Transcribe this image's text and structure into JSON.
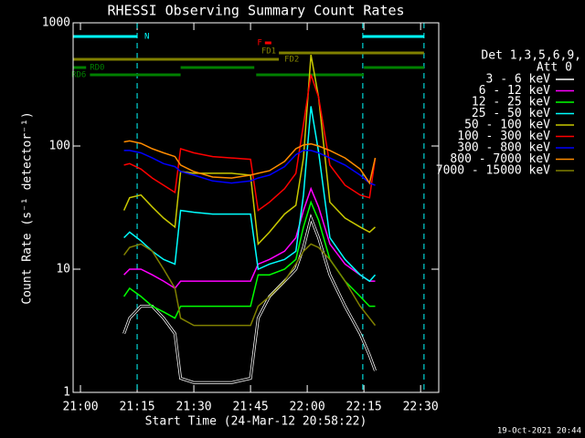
{
  "chart_data": {
    "type": "line",
    "title": "RHESSI Observing Summary Count Rates",
    "xlabel": "Start Time (24-Mar-12 20:58:22)",
    "ylabel": "Count Rate (s⁻¹ detector⁻¹)",
    "footer": "19-Oct-2021 20:44",
    "legend_title": [
      "Det 1,3,5,6,9,",
      "Att 0"
    ],
    "log_y": true,
    "xlim": [
      -1.94,
      94.8
    ],
    "ylim": [
      1,
      1000
    ],
    "xticks": [
      {
        "value": 0,
        "label": "21:00"
      },
      {
        "value": 15,
        "label": "21:15"
      },
      {
        "value": 30,
        "label": "21:30"
      },
      {
        "value": 45,
        "label": "21:45"
      },
      {
        "value": 60,
        "label": "22:00"
      },
      {
        "value": 75,
        "label": "22:15"
      },
      {
        "value": 90,
        "label": "22:30"
      }
    ],
    "yticks": [
      1,
      10,
      100,
      1000
    ],
    "x": [
      11.5,
      13,
      16,
      19,
      22,
      25,
      26.5,
      30,
      35,
      40,
      45,
      47,
      50,
      54,
      57,
      59,
      61,
      63,
      66,
      70,
      74,
      76.5,
      78
    ],
    "series": [
      {
        "name": "3 - 6 keV",
        "color": "#000000",
        "values": [
          3,
          4,
          5,
          5,
          4,
          3,
          1.3,
          1.2,
          1.2,
          1.2,
          1.3,
          4,
          6,
          8,
          10,
          15,
          26,
          18,
          9,
          5,
          3,
          2,
          1.5
        ]
      },
      {
        "name": "6 - 12 keV",
        "color": "#ff00ff",
        "values": [
          9,
          10,
          10,
          9,
          8,
          7,
          8,
          8,
          8,
          8,
          8,
          11,
          12,
          14,
          18,
          30,
          45,
          32,
          16,
          11,
          9,
          8,
          8
        ]
      },
      {
        "name": "12 - 25 keV",
        "color": "#00ff00",
        "values": [
          6,
          7,
          6,
          5,
          4.5,
          4,
          5,
          5,
          5,
          5,
          5,
          9,
          9,
          10,
          12,
          22,
          35,
          25,
          12,
          8,
          6,
          5,
          5
        ]
      },
      {
        "name": "25 - 50 keV",
        "color": "#00ffff",
        "values": [
          18,
          20,
          17,
          14,
          12,
          11,
          30,
          29,
          28,
          28,
          28,
          10,
          11,
          12,
          14,
          40,
          210,
          90,
          18,
          12,
          9,
          8,
          9
        ]
      },
      {
        "name": "50 - 100 keV",
        "color": "#c8c800",
        "values": [
          30,
          38,
          40,
          32,
          26,
          22,
          62,
          60,
          60,
          60,
          58,
          16,
          20,
          28,
          33,
          80,
          550,
          250,
          35,
          26,
          22,
          20,
          22
        ]
      },
      {
        "name": "100 - 300 keV",
        "color": "#ff0000",
        "values": [
          70,
          72,
          65,
          55,
          48,
          42,
          95,
          88,
          82,
          80,
          78,
          30,
          35,
          45,
          60,
          150,
          380,
          250,
          70,
          48,
          40,
          38,
          80
        ]
      },
      {
        "name": "300 - 800 keV",
        "color": "#0000ff",
        "values": [
          92,
          92,
          88,
          80,
          72,
          68,
          62,
          58,
          52,
          50,
          52,
          55,
          58,
          68,
          85,
          92,
          92,
          88,
          80,
          70,
          58,
          50,
          48
        ]
      },
      {
        "name": "800 - 7000 keV",
        "color": "#ff8c00",
        "values": [
          108,
          110,
          105,
          95,
          88,
          82,
          70,
          62,
          56,
          55,
          58,
          60,
          63,
          75,
          95,
          102,
          104,
          100,
          92,
          80,
          65,
          50,
          80
        ]
      },
      {
        "name": "7000 - 15000 keV",
        "color": "#808000",
        "values": [
          13,
          15,
          16,
          14,
          10,
          7,
          4,
          3.5,
          3.5,
          3.5,
          3.5,
          5,
          6,
          8,
          11,
          14,
          16,
          15,
          12,
          8,
          5,
          4,
          3.5
        ]
      }
    ],
    "flags": [
      {
        "label": "N",
        "color": "#00ffff",
        "segments": [
          [
            -1.94,
            15
          ],
          [
            74.7,
            90.9
          ]
        ]
      },
      {
        "label": "F",
        "color": "#ff0000",
        "segments": [
          [
            48.8,
            50.5
          ]
        ]
      },
      {
        "label": "FD1",
        "color": "#808000",
        "segments": [
          [
            52.5,
            90.9
          ]
        ]
      },
      {
        "label": "FD2",
        "color": "#808000",
        "segments": [
          [
            -1.94,
            52.5
          ]
        ]
      },
      {
        "label": "RD0",
        "color": "#008000",
        "segments": [
          [
            -1.94,
            1.5
          ],
          [
            26.5,
            46
          ],
          [
            75,
            90.9
          ]
        ]
      },
      {
        "label": "RD6",
        "color": "#008000",
        "segments": [
          [
            2.5,
            26.5
          ],
          [
            46.5,
            75
          ]
        ]
      }
    ]
  }
}
